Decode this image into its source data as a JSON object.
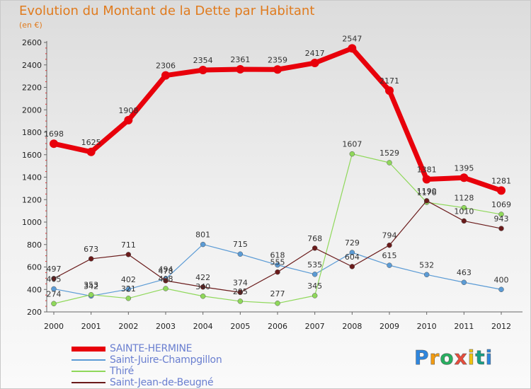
{
  "title": "Evolution du Montant de la Dette par Habitant",
  "unit": "(en €)",
  "logo": {
    "letters": [
      "P",
      "r",
      "o",
      "x",
      "i",
      "t",
      "i"
    ],
    "colors": [
      "#2e86de",
      "#f39c12",
      "#27ae60",
      "#e74c3c",
      "#f1c40f",
      "#16a085",
      "#2e86de"
    ]
  },
  "chart_data": {
    "type": "line",
    "x": [
      "2000",
      "2001",
      "2002",
      "2003",
      "2004",
      "2005",
      "2006",
      "2007",
      "2008",
      "2009",
      "2010",
      "2011",
      "2012"
    ],
    "ylim": [
      200,
      2600
    ],
    "yticks": [
      200,
      400,
      600,
      800,
      1000,
      1200,
      1400,
      1600,
      1800,
      2000,
      2200,
      2400,
      2600
    ],
    "grid": false,
    "legend": "bottom-left",
    "series": [
      {
        "name": "SAINTE-HERMINE",
        "color": "#e8000b",
        "width": 7,
        "marker": 6,
        "values": [
          1698,
          1625,
          1908,
          2306,
          2354,
          2361,
          2359,
          2417,
          2547,
          2171,
          1381,
          1395,
          1281
        ],
        "labels": [
          "1698",
          "1625",
          "1908",
          "2306",
          "2354",
          "2361",
          "2359",
          "2417",
          "2547",
          "2171",
          "1381",
          "1395",
          "1281"
        ]
      },
      {
        "name": "Saint-Juire-Champgillon",
        "color": "#5b9bd5",
        "width": 1.2,
        "marker": 3.5,
        "values": [
          405,
          342,
          402,
          494,
          801,
          715,
          618,
          535,
          729,
          615,
          532,
          463,
          400
        ],
        "labels": [
          "405",
          "342",
          "402",
          "494",
          "801",
          "715",
          "618",
          "535",
          "729",
          "615",
          "532",
          "463",
          "400"
        ]
      },
      {
        "name": "Thiré",
        "color": "#8fd85a",
        "width": 1.2,
        "marker": 3.5,
        "values": [
          274,
          353,
          321,
          408,
          340,
          295,
          277,
          345,
          1607,
          1529,
          1176,
          1128,
          1069
        ],
        "labels": [
          "274",
          "353",
          "321",
          "408",
          "340",
          "295",
          "277",
          "345",
          "1607",
          "1529",
          "1176",
          "1128",
          "1069"
        ]
      },
      {
        "name": "Saint-Jean-de-Beugné",
        "color": "#6a1b1b",
        "width": 1.2,
        "marker": 3.5,
        "values": [
          497,
          673,
          711,
          478,
          422,
          374,
          555,
          768,
          604,
          794,
          1190,
          1010,
          943
        ],
        "labels": [
          "497",
          "673",
          "711",
          "478",
          "422",
          "374",
          "555",
          "768",
          "604",
          "794",
          "1190",
          "1010",
          "943"
        ]
      }
    ]
  }
}
